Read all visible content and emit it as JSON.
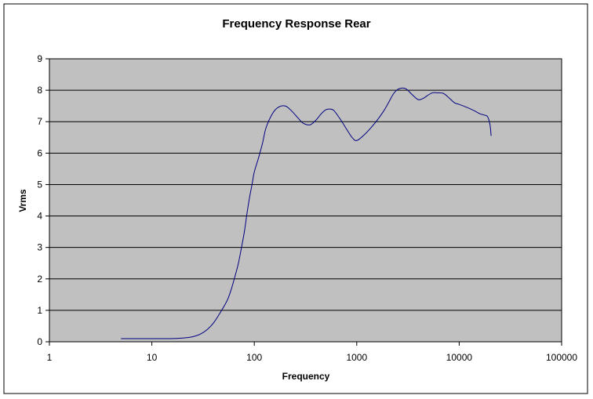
{
  "chart_data": {
    "type": "line",
    "title": "Frequency Response Rear",
    "xlabel": "Frequency",
    "ylabel": "Vrms",
    "x_scale": "log",
    "xlim": [
      1,
      100000
    ],
    "ylim": [
      0,
      9
    ],
    "x_ticks": [
      1,
      10,
      100,
      1000,
      10000,
      100000
    ],
    "x_tick_labels": [
      "1",
      "10",
      "100",
      "1000",
      "10000",
      "100000"
    ],
    "y_ticks": [
      0,
      1,
      2,
      3,
      4,
      5,
      6,
      7,
      8,
      9
    ],
    "y_tick_labels": [
      "0",
      "1",
      "2",
      "3",
      "4",
      "5",
      "6",
      "7",
      "8",
      "9"
    ],
    "grid": "horizontal",
    "legend": "none",
    "colors": {
      "plot_background": "#c0c0c0",
      "line": "#000080",
      "gridline": "#000000",
      "frame": "#000000"
    },
    "series": [
      {
        "color": "#000080",
        "x": [
          5,
          10,
          15,
          20,
          25,
          30,
          35,
          40,
          45,
          50,
          55,
          60,
          65,
          70,
          75,
          80,
          85,
          90,
          95,
          100,
          110,
          120,
          130,
          150,
          170,
          200,
          230,
          270,
          300,
          350,
          400,
          450,
          500,
          550,
          600,
          700,
          800,
          900,
          1000,
          1200,
          1500,
          1800,
          2000,
          2300,
          2600,
          3000,
          3500,
          4000,
          4500,
          5000,
          5500,
          6000,
          7000,
          8000,
          9000,
          10000,
          12000,
          14000,
          16000,
          18000,
          19000,
          20000,
          20500
        ],
        "y": [
          0.1,
          0.1,
          0.1,
          0.12,
          0.16,
          0.25,
          0.4,
          0.6,
          0.85,
          1.1,
          1.35,
          1.7,
          2.1,
          2.5,
          3.0,
          3.5,
          4.1,
          4.6,
          5.0,
          5.4,
          5.85,
          6.3,
          6.8,
          7.25,
          7.45,
          7.5,
          7.35,
          7.1,
          6.95,
          6.9,
          7.05,
          7.25,
          7.38,
          7.4,
          7.35,
          7.05,
          6.75,
          6.5,
          6.4,
          6.6,
          6.95,
          7.3,
          7.55,
          7.9,
          8.05,
          8.05,
          7.85,
          7.7,
          7.75,
          7.85,
          7.92,
          7.92,
          7.9,
          7.75,
          7.6,
          7.55,
          7.45,
          7.35,
          7.25,
          7.2,
          7.15,
          6.9,
          6.55
        ]
      }
    ]
  }
}
